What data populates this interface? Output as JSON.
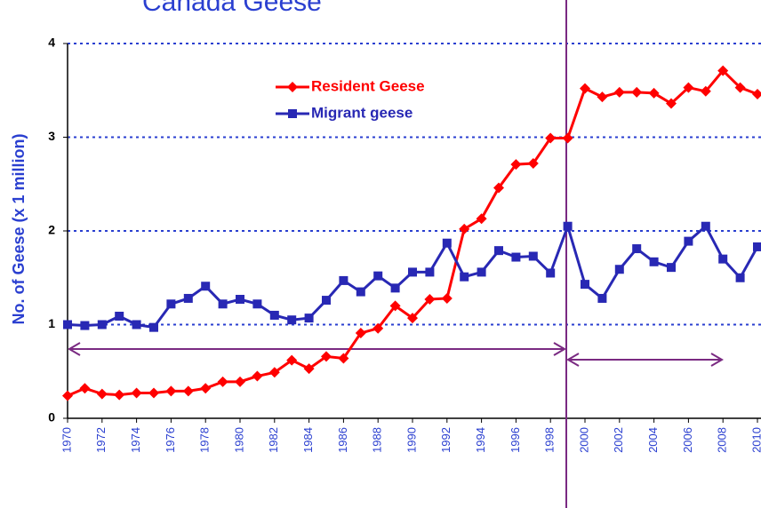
{
  "chart_data": {
    "type": "line",
    "title": "Canada Geese",
    "y_label": "No. of Geese (x 1 million)",
    "x": [
      1970,
      1971,
      1972,
      1973,
      1974,
      1975,
      1976,
      1977,
      1978,
      1979,
      1980,
      1981,
      1982,
      1983,
      1984,
      1985,
      1986,
      1987,
      1988,
      1989,
      1990,
      1991,
      1992,
      1993,
      1994,
      1995,
      1996,
      1997,
      1998,
      1999,
      2000,
      2001,
      2002,
      2003,
      2004,
      2005,
      2006,
      2007,
      2008,
      2009,
      2010
    ],
    "series": [
      {
        "name": "Resident Geese",
        "color": "#ff0000",
        "marker": "diamond",
        "values": [
          0.24,
          0.32,
          0.26,
          0.25,
          0.27,
          0.27,
          0.29,
          0.29,
          0.32,
          0.39,
          0.39,
          0.45,
          0.49,
          0.62,
          0.53,
          0.66,
          0.64,
          0.91,
          0.96,
          1.2,
          1.07,
          1.27,
          1.28,
          2.02,
          2.13,
          2.46,
          2.71,
          2.72,
          2.99,
          2.99,
          3.52,
          3.43,
          3.48,
          3.48,
          3.47,
          3.36,
          3.53,
          3.49,
          3.71,
          3.53,
          3.46
        ]
      },
      {
        "name": "Migrant geese",
        "color": "#2828b4",
        "marker": "square",
        "values": [
          1.0,
          0.99,
          1.0,
          1.09,
          1.0,
          0.97,
          1.22,
          1.28,
          1.41,
          1.22,
          1.27,
          1.22,
          1.1,
          1.05,
          1.07,
          1.26,
          1.47,
          1.35,
          1.52,
          1.39,
          1.56,
          1.56,
          1.87,
          1.51,
          1.56,
          1.79,
          1.72,
          1.73,
          1.55,
          2.05,
          1.43,
          1.28,
          1.59,
          1.81,
          1.67,
          1.61,
          1.89,
          2.05,
          1.7,
          1.5,
          1.83
        ]
      }
    ],
    "xlim": [
      1970,
      2010
    ],
    "xticks": [
      1970,
      1972,
      1974,
      1976,
      1978,
      1980,
      1982,
      1984,
      1986,
      1988,
      1990,
      1992,
      1994,
      1996,
      1998,
      2000,
      2002,
      2004,
      2006,
      2008,
      2010
    ],
    "ylim": [
      0,
      4
    ],
    "yticks": [
      0,
      1,
      2,
      3,
      4
    ],
    "grid": true
  }
}
